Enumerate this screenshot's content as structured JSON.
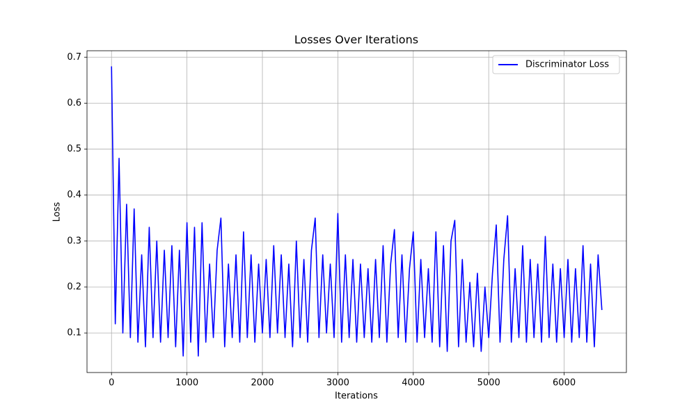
{
  "chart_data": {
    "type": "line",
    "title": "Losses Over Iterations",
    "xlabel": "Iterations",
    "ylabel": "Loss",
    "x": [
      0,
      50,
      100,
      150,
      200,
      250,
      300,
      350,
      400,
      450,
      500,
      550,
      600,
      650,
      700,
      750,
      800,
      850,
      900,
      950,
      1000,
      1050,
      1100,
      1150,
      1200,
      1250,
      1300,
      1350,
      1400,
      1450,
      1500,
      1550,
      1600,
      1650,
      1700,
      1750,
      1800,
      1850,
      1900,
      1950,
      2000,
      2050,
      2100,
      2150,
      2200,
      2250,
      2300,
      2350,
      2400,
      2450,
      2500,
      2550,
      2600,
      2650,
      2700,
      2750,
      2800,
      2850,
      2900,
      2950,
      3000,
      3050,
      3100,
      3150,
      3200,
      3250,
      3300,
      3350,
      3400,
      3450,
      3500,
      3550,
      3600,
      3650,
      3700,
      3750,
      3800,
      3850,
      3900,
      3950,
      4000,
      4050,
      4100,
      4150,
      4200,
      4250,
      4300,
      4350,
      4400,
      4450,
      4500,
      4550,
      4600,
      4650,
      4700,
      4750,
      4800,
      4850,
      4900,
      4950,
      5000,
      5050,
      5100,
      5150,
      5200,
      5250,
      5300,
      5350,
      5400,
      5450,
      5500,
      5550,
      5600,
      5650,
      5700,
      5750,
      5800,
      5850,
      5900,
      5950,
      6000,
      6050,
      6100,
      6150,
      6200,
      6250,
      6300,
      6350,
      6400,
      6450,
      6500
    ],
    "series": [
      {
        "name": "Discriminator Loss",
        "color": "#0000ff",
        "values": [
          0.68,
          0.12,
          0.48,
          0.1,
          0.38,
          0.09,
          0.37,
          0.08,
          0.27,
          0.07,
          0.33,
          0.09,
          0.3,
          0.08,
          0.28,
          0.09,
          0.29,
          0.07,
          0.28,
          0.05,
          0.34,
          0.08,
          0.33,
          0.05,
          0.34,
          0.08,
          0.25,
          0.09,
          0.28,
          0.35,
          0.07,
          0.25,
          0.09,
          0.27,
          0.08,
          0.32,
          0.09,
          0.27,
          0.08,
          0.25,
          0.1,
          0.26,
          0.09,
          0.29,
          0.1,
          0.27,
          0.09,
          0.25,
          0.07,
          0.3,
          0.09,
          0.26,
          0.08,
          0.28,
          0.35,
          0.09,
          0.27,
          0.1,
          0.25,
          0.09,
          0.36,
          0.08,
          0.27,
          0.09,
          0.26,
          0.08,
          0.25,
          0.09,
          0.24,
          0.08,
          0.26,
          0.09,
          0.29,
          0.08,
          0.25,
          0.325,
          0.09,
          0.27,
          0.08,
          0.24,
          0.32,
          0.08,
          0.26,
          0.09,
          0.24,
          0.08,
          0.32,
          0.07,
          0.29,
          0.06,
          0.3,
          0.345,
          0.07,
          0.26,
          0.08,
          0.21,
          0.07,
          0.23,
          0.06,
          0.2,
          0.09,
          0.23,
          0.335,
          0.08,
          0.26,
          0.355,
          0.08,
          0.24,
          0.09,
          0.29,
          0.08,
          0.26,
          0.09,
          0.25,
          0.08,
          0.31,
          0.09,
          0.25,
          0.08,
          0.24,
          0.09,
          0.26,
          0.08,
          0.24,
          0.09,
          0.29,
          0.08,
          0.25,
          0.07,
          0.27,
          0.15
        ]
      }
    ],
    "xlim": [
      -325,
      6825
    ],
    "xticks": [
      0,
      1000,
      2000,
      3000,
      4000,
      5000,
      6000
    ],
    "ylim": [
      0.014,
      0.714
    ],
    "yticks": [
      0.1,
      0.2,
      0.3,
      0.4,
      0.5,
      0.6,
      0.7
    ],
    "grid": true,
    "legend": "upper right"
  }
}
